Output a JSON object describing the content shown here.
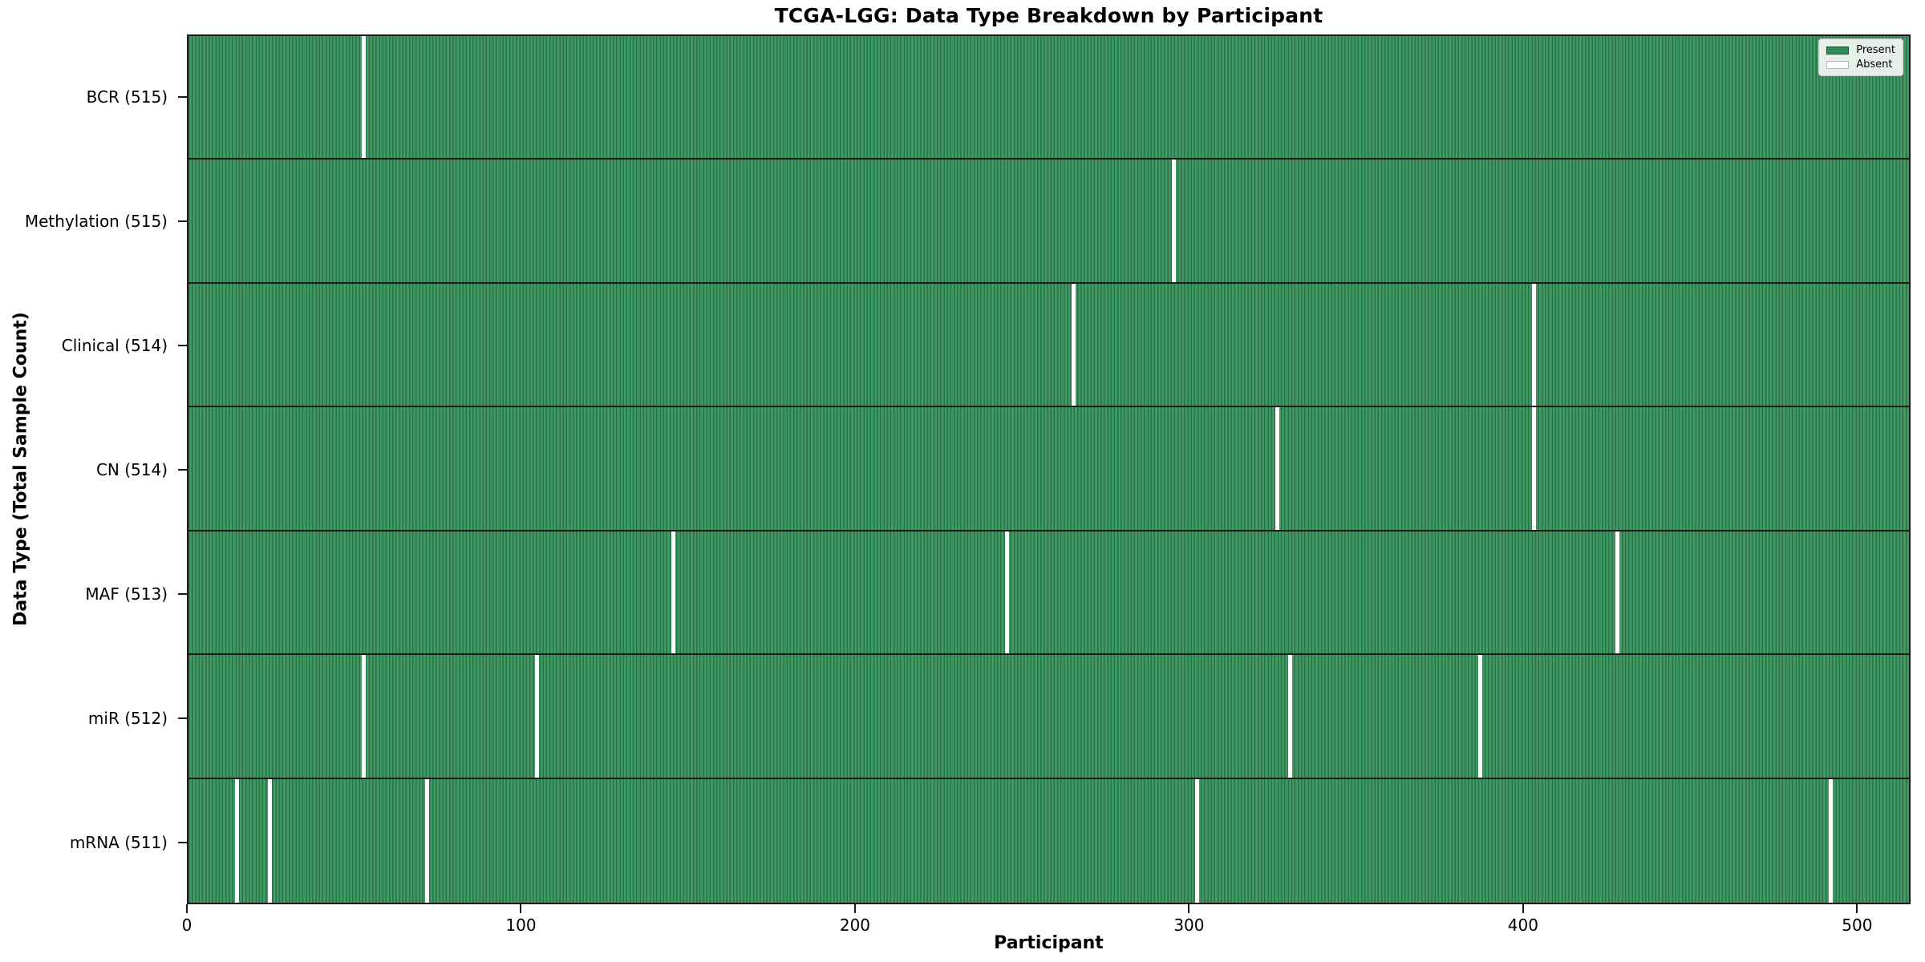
{
  "chart_data": {
    "type": "heatmap",
    "title": "TCGA-LGG: Data Type Breakdown by Participant",
    "xlabel": "Participant",
    "ylabel": "Data Type (Total Sample Count)",
    "x_ticks": [
      0,
      100,
      200,
      300,
      400,
      500
    ],
    "xlim": [
      0,
      516
    ],
    "total_participants": 516,
    "grid": false,
    "legend": {
      "position": "upper right",
      "items": [
        {
          "label": "Present",
          "color": "#2e8b57"
        },
        {
          "label": "Absent",
          "color": "#ffffff"
        }
      ]
    },
    "colors": {
      "bar_fill": "#3f9b64",
      "bar_edge": "#2d7048",
      "row_border": "#1a1a1a",
      "absent": "#ffffff",
      "legend_present": "#2e8b57",
      "legend_present_edge": "#1a5632",
      "legend_absent_edge": "#b8b8b8"
    },
    "rows": [
      {
        "label": "BCR (515)",
        "present_count": 515,
        "absent_participants": [
          52
        ]
      },
      {
        "label": "Methylation (515)",
        "present_count": 515,
        "absent_participants": [
          295
        ]
      },
      {
        "label": "Clinical (514)",
        "present_count": 514,
        "absent_participants": [
          265,
          403
        ]
      },
      {
        "label": "CN (514)",
        "present_count": 514,
        "absent_participants": [
          326,
          403
        ]
      },
      {
        "label": "MAF (513)",
        "present_count": 513,
        "absent_participants": [
          145,
          245,
          428
        ]
      },
      {
        "label": "miR (512)",
        "present_count": 512,
        "absent_participants": [
          52,
          104,
          330,
          387
        ]
      },
      {
        "label": "mRNA (511)",
        "present_count": 511,
        "absent_participants": [
          14,
          24,
          71,
          302,
          492
        ]
      }
    ]
  }
}
